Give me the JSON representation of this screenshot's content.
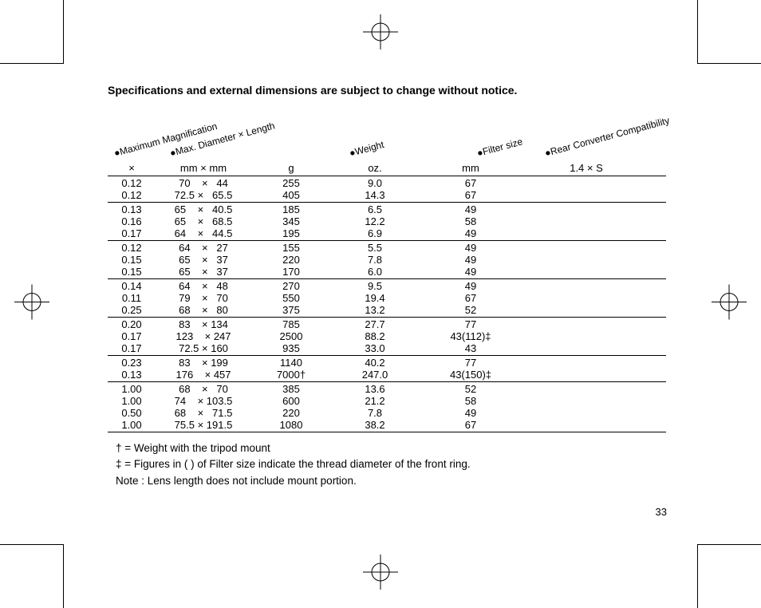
{
  "title": "Specifications and external dimensions are subject to change without notice.",
  "headers": {
    "mag": "Maximum Magnification",
    "dim": "Max. Diameter × Length",
    "weight": "Weight",
    "filter": "Filter size",
    "rear": "Rear Converter Compatibility"
  },
  "units": {
    "c1": "×",
    "c2": "mm × mm",
    "c3": "g",
    "c4": "oz.",
    "c5": "mm",
    "c6": "1.4 × S"
  },
  "groups": [
    [
      {
        "mag": "0.12",
        "dim": "70    ×   44",
        "g": "255",
        "oz": "9.0",
        "filter": "67",
        "rear": ""
      },
      {
        "mag": "0.12",
        "dim": "72.5 ×   65.5",
        "g": "405",
        "oz": "14.3",
        "filter": "67",
        "rear": ""
      }
    ],
    [
      {
        "mag": "0.13",
        "dim": "65    ×   40.5",
        "g": "185",
        "oz": "6.5",
        "filter": "49",
        "rear": ""
      },
      {
        "mag": "0.16",
        "dim": "65    ×   68.5",
        "g": "345",
        "oz": "12.2",
        "filter": "58",
        "rear": ""
      },
      {
        "mag": "0.17",
        "dim": "64    ×   44.5",
        "g": "195",
        "oz": "6.9",
        "filter": "49",
        "rear": ""
      }
    ],
    [
      {
        "mag": "0.12",
        "dim": "64    ×   27",
        "g": "155",
        "oz": "5.5",
        "filter": "49",
        "rear": ""
      },
      {
        "mag": "0.15",
        "dim": "65    ×   37",
        "g": "220",
        "oz": "7.8",
        "filter": "49",
        "rear": ""
      },
      {
        "mag": "0.15",
        "dim": "65    ×   37",
        "g": "170",
        "oz": "6.0",
        "filter": "49",
        "rear": ""
      }
    ],
    [
      {
        "mag": "0.14",
        "dim": "64    ×   48",
        "g": "270",
        "oz": "9.5",
        "filter": "49",
        "rear": ""
      },
      {
        "mag": "0.11",
        "dim": "79    ×   70",
        "g": "550",
        "oz": "19.4",
        "filter": "67",
        "rear": ""
      },
      {
        "mag": "0.25",
        "dim": "68    ×   80",
        "g": "375",
        "oz": "13.2",
        "filter": "52",
        "rear": ""
      }
    ],
    [
      {
        "mag": "0.20",
        "dim": "83    × 134",
        "g": "785",
        "oz": "27.7",
        "filter": "77",
        "rear": ""
      },
      {
        "mag": "0.17",
        "dim": "123    × 247",
        "g": "2500",
        "oz": "88.2",
        "filter": "43(112)‡",
        "rear": ""
      },
      {
        "mag": "0.17",
        "dim": "72.5 × 160",
        "g": "935",
        "oz": "33.0",
        "filter": "43",
        "rear": ""
      }
    ],
    [
      {
        "mag": "0.23",
        "dim": "83    × 199",
        "g": "1140",
        "oz": "40.2",
        "filter": "77",
        "rear": ""
      },
      {
        "mag": "0.13",
        "dim": "176    × 457",
        "g": "7000†",
        "oz": "247.0",
        "filter": "43(150)‡",
        "rear": ""
      }
    ],
    [
      {
        "mag": "1.00",
        "dim": "68    ×   70",
        "g": "385",
        "oz": "13.6",
        "filter": "52",
        "rear": ""
      },
      {
        "mag": "1.00",
        "dim": "74    × 103.5",
        "g": "600",
        "oz": "21.2",
        "filter": "58",
        "rear": ""
      },
      {
        "mag": "0.50",
        "dim": "68    ×   71.5",
        "g": "220",
        "oz": "7.8",
        "filter": "49",
        "rear": ""
      },
      {
        "mag": "1.00",
        "dim": "75.5 × 191.5",
        "g": "1080",
        "oz": "38.2",
        "filter": "67",
        "rear": ""
      }
    ]
  ],
  "notes": {
    "n1": "† = Weight with the tripod mount",
    "n2": "‡ = Figures in (  ) of Filter size indicate the thread diameter of the front ring.",
    "n3": "Note : Lens length does not include mount portion."
  },
  "pagenum": "33"
}
